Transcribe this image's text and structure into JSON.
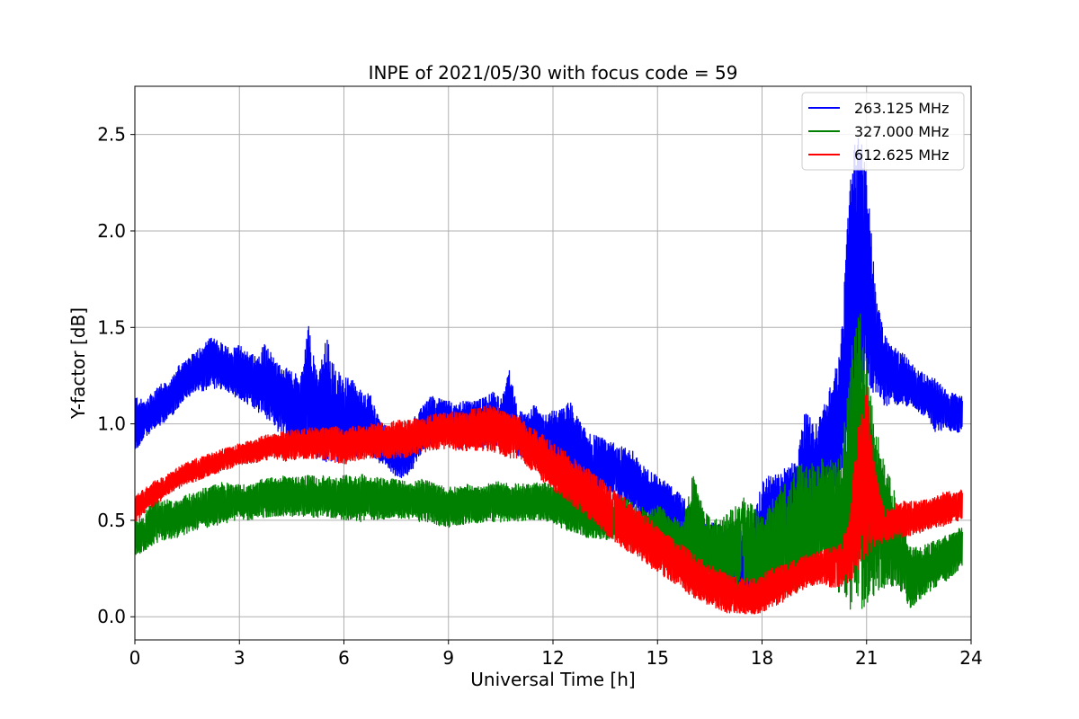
{
  "chart_data": {
    "type": "line",
    "title": "INPE of 2021/05/30 with focus code = 59",
    "xlabel": "Universal Time [h]",
    "ylabel": "Y-factor [dB]",
    "xlim": [
      0,
      24
    ],
    "ylim": [
      -0.12,
      2.75
    ],
    "x_ticks": [
      0,
      3,
      6,
      9,
      12,
      15,
      18,
      21,
      24
    ],
    "x_tick_labels": [
      "0",
      "3",
      "6",
      "9",
      "12",
      "15",
      "18",
      "21",
      "24"
    ],
    "y_ticks": [
      0.0,
      0.5,
      1.0,
      1.5,
      2.0,
      2.5
    ],
    "y_tick_labels": [
      "0.0",
      "0.5",
      "1.0",
      "1.5",
      "2.0",
      "2.5"
    ],
    "grid": true,
    "legend_position": "top-right",
    "x_step_hours": 0.25,
    "series": [
      {
        "name": "263.125 MHz",
        "color": "#0000ff",
        "x": [
          0,
          0.25,
          0.5,
          0.75,
          1,
          1.25,
          1.5,
          1.75,
          2,
          2.25,
          2.5,
          2.75,
          3,
          3.25,
          3.5,
          3.75,
          4,
          4.25,
          4.5,
          4.75,
          5,
          5.25,
          5.5,
          5.75,
          6,
          6.25,
          6.5,
          6.75,
          7,
          7.25,
          7.5,
          7.75,
          8,
          8.25,
          8.5,
          8.75,
          9,
          9.25,
          9.5,
          9.75,
          10,
          10.25,
          10.5,
          10.75,
          11,
          11.25,
          11.5,
          11.75,
          12,
          12.25,
          12.5,
          12.75,
          13,
          13.25,
          13.5,
          13.75,
          14,
          14.25,
          14.5,
          14.75,
          15,
          15.25,
          15.5,
          15.75,
          16,
          16.25,
          16.5,
          16.75,
          17,
          17.25,
          17.5,
          17.75,
          18,
          18.25,
          18.5,
          18.75,
          19,
          19.25,
          19.5,
          19.75,
          20,
          20.25,
          20.5,
          20.75,
          21,
          21.25,
          21.5,
          21.75,
          22,
          22.25,
          22.5,
          22.75,
          23,
          23.25,
          23.5,
          23.75
        ],
        "y_min": [
          0.85,
          0.92,
          0.96,
          0.99,
          1.03,
          1.08,
          1.13,
          1.16,
          1.17,
          1.18,
          1.18,
          1.16,
          1.12,
          1.1,
          1.06,
          1.03,
          0.98,
          0.93,
          0.88,
          0.85,
          0.8,
          0.82,
          0.8,
          0.8,
          0.81,
          0.83,
          0.83,
          0.83,
          0.8,
          0.77,
          0.72,
          0.72,
          0.77,
          0.86,
          0.9,
          0.91,
          0.92,
          0.87,
          0.86,
          0.88,
          0.87,
          0.89,
          0.88,
          0.9,
          0.82,
          0.82,
          0.79,
          0.72,
          0.72,
          0.73,
          0.73,
          0.68,
          0.67,
          0.65,
          0.65,
          0.62,
          0.59,
          0.57,
          0.52,
          0.5,
          0.49,
          0.45,
          0.4,
          0.34,
          0.27,
          0.25,
          0.22,
          0.1,
          0.12,
          0.08,
          0.05,
          0.02,
          0.18,
          0.25,
          0.4,
          0.42,
          0.37,
          0.42,
          0.55,
          0.65,
          0.62,
          0.74,
          0.78,
          0.97,
          1.24,
          1.12,
          1.09,
          1.1,
          1.09,
          1.09,
          1.06,
          1.03,
          0.95,
          0.97,
          0.95,
          0.96
        ],
        "y_max": [
          1.15,
          1.12,
          1.16,
          1.21,
          1.21,
          1.31,
          1.33,
          1.38,
          1.42,
          1.46,
          1.42,
          1.39,
          1.41,
          1.38,
          1.35,
          1.43,
          1.34,
          1.3,
          1.27,
          1.25,
          1.53,
          1.23,
          1.46,
          1.28,
          1.26,
          1.23,
          1.17,
          1.16,
          1.03,
          0.98,
          0.96,
          0.96,
          1.03,
          1.09,
          1.15,
          1.13,
          1.12,
          1.11,
          1.12,
          1.12,
          1.14,
          1.17,
          1.13,
          1.28,
          1.07,
          1.05,
          1.11,
          1.04,
          1.07,
          1.08,
          1.12,
          1.02,
          0.95,
          0.94,
          0.92,
          0.9,
          0.88,
          0.87,
          0.8,
          0.76,
          0.73,
          0.7,
          0.66,
          0.62,
          0.55,
          0.51,
          0.49,
          0.48,
          0.47,
          0.5,
          0.47,
          0.52,
          0.7,
          0.74,
          0.75,
          0.79,
          0.8,
          1.1,
          0.98,
          1.07,
          1.25,
          1.37,
          2.2,
          2.6,
          2.32,
          1.73,
          1.47,
          1.4,
          1.38,
          1.32,
          1.28,
          1.25,
          1.23,
          1.18,
          1.16,
          1.14
        ]
      },
      {
        "name": "327.000 MHz",
        "color": "#008000",
        "x": [
          0,
          0.25,
          0.5,
          0.75,
          1,
          1.25,
          1.5,
          1.75,
          2,
          2.25,
          2.5,
          2.75,
          3,
          3.25,
          3.5,
          3.75,
          4,
          4.25,
          4.5,
          4.75,
          5,
          5.25,
          5.5,
          5.75,
          6,
          6.25,
          6.5,
          6.75,
          7,
          7.25,
          7.5,
          7.75,
          8,
          8.25,
          8.5,
          8.75,
          9,
          9.25,
          9.5,
          9.75,
          10,
          10.25,
          10.5,
          10.75,
          11,
          11.25,
          11.5,
          11.75,
          12,
          12.25,
          12.5,
          12.75,
          13,
          13.25,
          13.5,
          13.75,
          14,
          14.25,
          14.5,
          14.75,
          15,
          15.25,
          15.5,
          15.75,
          16,
          16.25,
          16.5,
          16.75,
          17,
          17.25,
          17.5,
          17.75,
          18,
          18.25,
          18.5,
          18.75,
          19,
          19.25,
          19.5,
          19.75,
          20,
          20.25,
          20.5,
          20.75,
          21,
          21.25,
          21.5,
          21.75,
          22,
          22.25,
          22.5,
          22.75,
          23,
          23.25,
          23.5,
          23.75
        ],
        "y_min": [
          0.31,
          0.33,
          0.37,
          0.39,
          0.4,
          0.41,
          0.43,
          0.45,
          0.46,
          0.47,
          0.48,
          0.49,
          0.51,
          0.5,
          0.51,
          0.51,
          0.52,
          0.52,
          0.52,
          0.52,
          0.52,
          0.51,
          0.52,
          0.5,
          0.5,
          0.5,
          0.49,
          0.5,
          0.5,
          0.51,
          0.51,
          0.51,
          0.5,
          0.49,
          0.49,
          0.47,
          0.46,
          0.47,
          0.48,
          0.48,
          0.49,
          0.49,
          0.49,
          0.49,
          0.49,
          0.5,
          0.5,
          0.5,
          0.48,
          0.46,
          0.44,
          0.42,
          0.41,
          0.4,
          0.4,
          0.4,
          0.38,
          0.36,
          0.35,
          0.33,
          0.33,
          0.3,
          0.27,
          0.24,
          0.21,
          0.22,
          0.17,
          0.16,
          0.15,
          0.13,
          0.12,
          0.1,
          0.1,
          0.09,
          0.1,
          0.1,
          0.13,
          0.15,
          0.17,
          0.21,
          0.2,
          0.1,
          0.04,
          0.03,
          0.05,
          0.12,
          0.14,
          0.16,
          0.13,
          0.04,
          0.08,
          0.12,
          0.15,
          0.18,
          0.22,
          0.26
        ],
        "y_max": [
          0.5,
          0.52,
          0.62,
          0.6,
          0.61,
          0.6,
          0.64,
          0.64,
          0.67,
          0.68,
          0.7,
          0.7,
          0.69,
          0.68,
          0.7,
          0.73,
          0.72,
          0.73,
          0.73,
          0.72,
          0.74,
          0.72,
          0.74,
          0.72,
          0.74,
          0.73,
          0.74,
          0.73,
          0.72,
          0.72,
          0.72,
          0.71,
          0.7,
          0.72,
          0.7,
          0.68,
          0.68,
          0.67,
          0.7,
          0.67,
          0.68,
          0.7,
          0.7,
          0.69,
          0.69,
          0.69,
          0.7,
          0.7,
          0.69,
          0.68,
          0.66,
          0.64,
          0.62,
          0.61,
          0.6,
          0.6,
          0.62,
          0.6,
          0.57,
          0.56,
          0.58,
          0.55,
          0.52,
          0.5,
          0.75,
          0.6,
          0.52,
          0.5,
          0.54,
          0.58,
          0.62,
          0.58,
          0.51,
          0.6,
          0.7,
          0.68,
          0.79,
          0.8,
          0.81,
          0.82,
          0.82,
          0.82,
          1.3,
          1.7,
          1.35,
          1.0,
          0.8,
          0.7,
          0.5,
          0.36,
          0.36,
          0.38,
          0.4,
          0.43,
          0.45,
          0.47
        ]
      },
      {
        "name": "612.625 MHz",
        "color": "#ff0000",
        "x": [
          0,
          0.25,
          0.5,
          0.75,
          1,
          1.25,
          1.5,
          1.75,
          2,
          2.25,
          2.5,
          2.75,
          3,
          3.25,
          3.5,
          3.75,
          4,
          4.25,
          4.5,
          4.75,
          5,
          5.25,
          5.5,
          5.75,
          6,
          6.25,
          6.5,
          6.75,
          7,
          7.25,
          7.5,
          7.75,
          8,
          8.25,
          8.5,
          8.75,
          9,
          9.25,
          9.5,
          9.75,
          10,
          10.25,
          10.5,
          10.75,
          11,
          11.25,
          11.5,
          11.75,
          12,
          12.25,
          12.5,
          12.75,
          13,
          13.25,
          13.5,
          13.75,
          14,
          14.25,
          14.5,
          14.75,
          15,
          15.25,
          15.5,
          15.75,
          16,
          16.25,
          16.5,
          16.75,
          17,
          17.25,
          17.5,
          17.75,
          18,
          18.25,
          18.5,
          18.75,
          19,
          19.25,
          19.5,
          19.75,
          20,
          20.25,
          20.5,
          20.75,
          21,
          21.25,
          21.5,
          21.75,
          22,
          22.25,
          22.5,
          22.75,
          23,
          23.25,
          23.5,
          23.75
        ],
        "y_min": [
          0.49,
          0.53,
          0.57,
          0.6,
          0.64,
          0.66,
          0.69,
          0.7,
          0.72,
          0.74,
          0.75,
          0.77,
          0.78,
          0.79,
          0.8,
          0.81,
          0.82,
          0.8,
          0.81,
          0.82,
          0.82,
          0.82,
          0.81,
          0.8,
          0.79,
          0.8,
          0.81,
          0.82,
          0.82,
          0.82,
          0.82,
          0.82,
          0.84,
          0.85,
          0.86,
          0.87,
          0.87,
          0.86,
          0.86,
          0.86,
          0.86,
          0.85,
          0.84,
          0.82,
          0.82,
          0.78,
          0.74,
          0.69,
          0.65,
          0.62,
          0.58,
          0.55,
          0.51,
          0.47,
          0.43,
          0.39,
          0.35,
          0.33,
          0.3,
          0.26,
          0.23,
          0.2,
          0.17,
          0.14,
          0.1,
          0.08,
          0.05,
          0.04,
          0.02,
          0.02,
          0.01,
          0.01,
          0.02,
          0.05,
          0.06,
          0.1,
          0.12,
          0.15,
          0.16,
          0.17,
          0.15,
          0.15,
          0.17,
          0.23,
          0.3,
          0.35,
          0.38,
          0.4,
          0.41,
          0.42,
          0.43,
          0.45,
          0.46,
          0.47,
          0.48,
          0.5
        ],
        "y_max": [
          0.63,
          0.66,
          0.7,
          0.72,
          0.75,
          0.78,
          0.8,
          0.82,
          0.84,
          0.85,
          0.87,
          0.88,
          0.9,
          0.91,
          0.92,
          0.95,
          0.95,
          0.96,
          0.97,
          0.97,
          0.98,
          0.98,
          0.98,
          0.99,
          0.98,
          0.99,
          0.99,
          1.0,
          1.01,
          1.01,
          1.02,
          1.02,
          1.03,
          1.03,
          1.05,
          1.06,
          1.06,
          1.07,
          1.07,
          1.08,
          1.09,
          1.1,
          1.08,
          1.07,
          1.05,
          1.0,
          0.97,
          0.94,
          0.9,
          0.87,
          0.84,
          0.8,
          0.77,
          0.73,
          0.7,
          0.66,
          0.63,
          0.59,
          0.55,
          0.52,
          0.47,
          0.43,
          0.4,
          0.37,
          0.33,
          0.3,
          0.27,
          0.25,
          0.23,
          0.21,
          0.2,
          0.2,
          0.22,
          0.25,
          0.27,
          0.28,
          0.3,
          0.32,
          0.33,
          0.35,
          0.36,
          0.38,
          0.5,
          1.0,
          1.2,
          0.8,
          0.55,
          0.58,
          0.6,
          0.6,
          0.6,
          0.61,
          0.63,
          0.65,
          0.65,
          0.66
        ]
      }
    ]
  }
}
